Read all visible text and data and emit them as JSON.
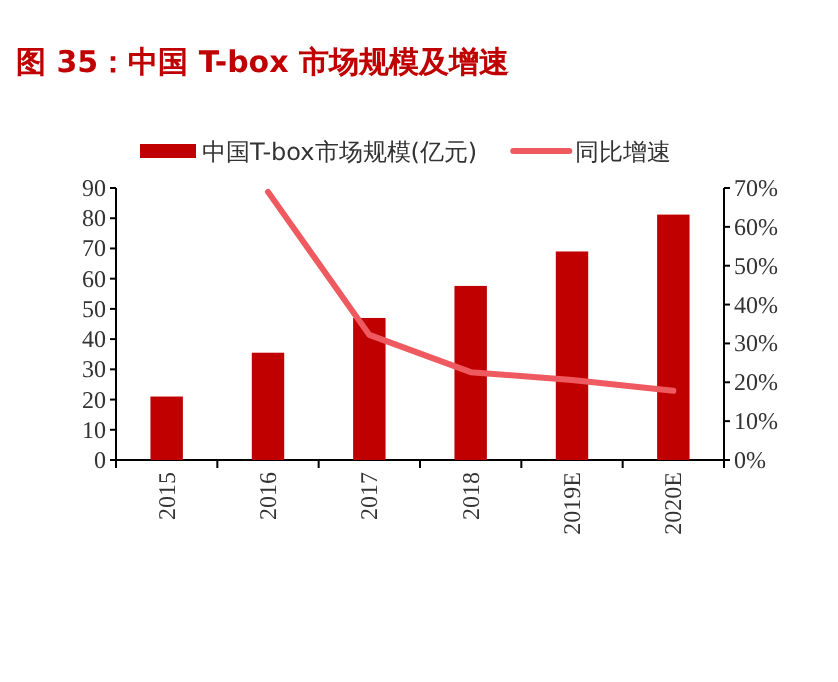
{
  "chart_data": {
    "type": "bar",
    "title": "图 35：中国 T-box 市场规模及增速",
    "categories": [
      "2015",
      "2016",
      "2017",
      "2018",
      "2019E",
      "2020E"
    ],
    "series": [
      {
        "name": "中国T-box市场规模(亿元)",
        "color": "#c00000",
        "values": [
          21,
          35.5,
          47,
          57.6,
          69,
          81.2
        ]
      },
      {
        "name": "同比增速",
        "type": "line",
        "axis": "y2",
        "color": "#ee5a5f",
        "values": [
          null,
          69,
          32.2,
          22.6,
          20.6,
          17.8
        ]
      }
    ],
    "ylim": [
      0,
      90
    ],
    "yticks": [
      0,
      10,
      20,
      30,
      40,
      50,
      60,
      70,
      80,
      90
    ],
    "y2lim": [
      0,
      70
    ],
    "y2ticks": [
      {
        "value": 0,
        "label": "0%"
      },
      {
        "value": 10,
        "label": "10%"
      },
      {
        "value": 20,
        "label": "20%"
      },
      {
        "value": 30,
        "label": "30%"
      },
      {
        "value": 40,
        "label": "40%"
      },
      {
        "value": 50,
        "label": "50%"
      },
      {
        "value": 60,
        "label": "60%"
      },
      {
        "value": 70,
        "label": "70%"
      }
    ],
    "legend": "top",
    "grid": false
  }
}
